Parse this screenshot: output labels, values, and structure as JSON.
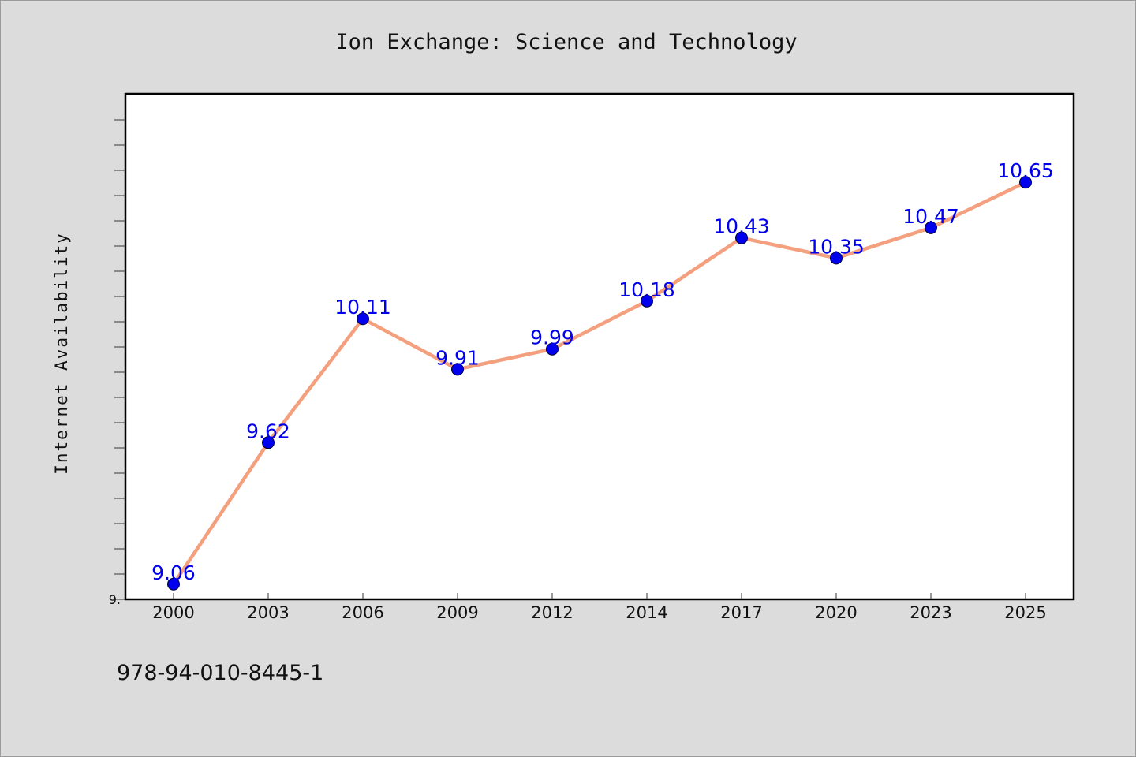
{
  "chart_data": {
    "type": "line",
    "title": "Ion Exchange: Science and Technology",
    "xlabel": "",
    "ylabel": "Internet Availability",
    "x": [
      "2000",
      "2003",
      "2006",
      "2009",
      "2012",
      "2014",
      "2017",
      "2020",
      "2023",
      "2025"
    ],
    "series": [
      {
        "values": [
          9.06,
          9.62,
          10.11,
          9.91,
          9.99,
          10.18,
          10.43,
          10.35,
          10.47,
          10.65
        ],
        "data_labels": [
          "9.06",
          "9.62",
          "10.11",
          "9.91",
          "9.99",
          "10.18",
          "10.43",
          "10.35",
          "10.47",
          "10.65"
        ]
      }
    ],
    "ylim": [
      9.0,
      11.0
    ],
    "y_tick_labels": [
      "9."
    ],
    "grid": false,
    "legend": "none",
    "colors": {
      "line": "#f4a07e",
      "marker": "#0000ee",
      "marker_edge": "#000033",
      "data_label": "#0000ee",
      "plot_background": "#ffffff",
      "figure_background": "#dcdcdc"
    }
  },
  "footer_text": "978-94-010-8445-1"
}
